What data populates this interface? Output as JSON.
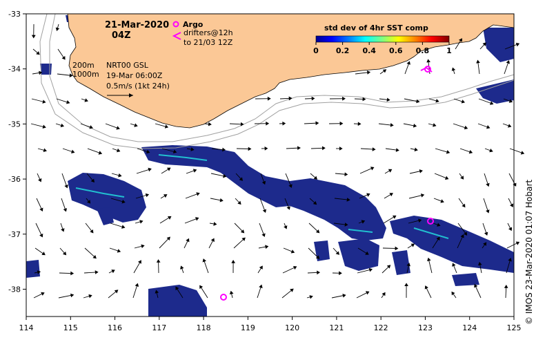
{
  "title": {
    "date": "21-Mar-2020",
    "time": "04Z"
  },
  "legend": {
    "argo": "Argo",
    "drifters_line1": "drifters@12h",
    "drifters_line2": "to 21/03 12Z",
    "contour_200": "200m",
    "contour_1000": "1000m",
    "model": "NRT00 GSL",
    "model_date": "19-Mar 06:00Z",
    "vector_scale": "0.5m/s (1kt 24h)"
  },
  "colorbar": {
    "title": "std dev of 4hr SST comp",
    "ticks": [
      "0",
      "0.2",
      "0.4",
      "0.6",
      "0.8",
      "1"
    ],
    "colors": [
      "#00008f",
      "#0000ff",
      "#0080ff",
      "#00ffff",
      "#80ff80",
      "#ffff00",
      "#ff8000",
      "#ff0000",
      "#800000"
    ]
  },
  "axes": {
    "x_ticks": [
      "114",
      "115",
      "116",
      "117",
      "118",
      "119",
      "120",
      "121",
      "122",
      "123",
      "124",
      "125"
    ],
    "y_ticks": [
      "-33",
      "-34",
      "-35",
      "-36",
      "-37",
      "-38"
    ]
  },
  "credit": "© IMOS 23-Mar-2020 01:07 Hobart",
  "colors": {
    "land": "#fbc896",
    "sst_patch": "#1d2a8c",
    "argo": "#ff00ff",
    "contour": "#a0a0a0"
  }
}
